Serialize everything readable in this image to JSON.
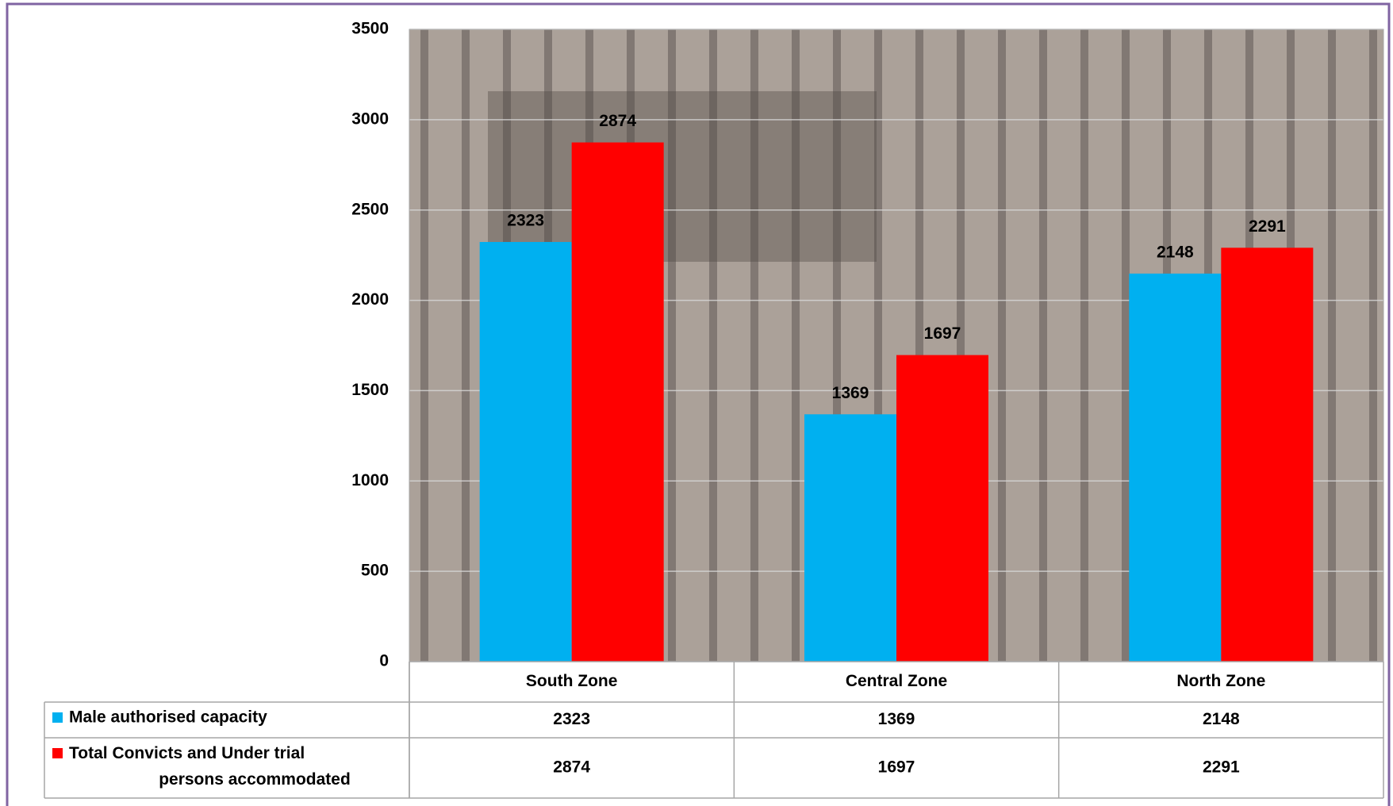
{
  "chart_data": {
    "type": "bar",
    "categories": [
      "South Zone",
      "Central Zone",
      "North Zone"
    ],
    "series": [
      {
        "name": "Male authorised capacity",
        "color": "#00b0f0",
        "values": [
          2323,
          1369,
          2148
        ]
      },
      {
        "name": "Total Convicts and Under trial persons accommodated",
        "color": "#ff0000",
        "values": [
          2874,
          1697,
          2291
        ]
      }
    ],
    "ylim": [
      0,
      3500
    ],
    "yticks": [
      0,
      500,
      1000,
      1500,
      2000,
      2500,
      3000,
      3500
    ],
    "grid": true
  }
}
